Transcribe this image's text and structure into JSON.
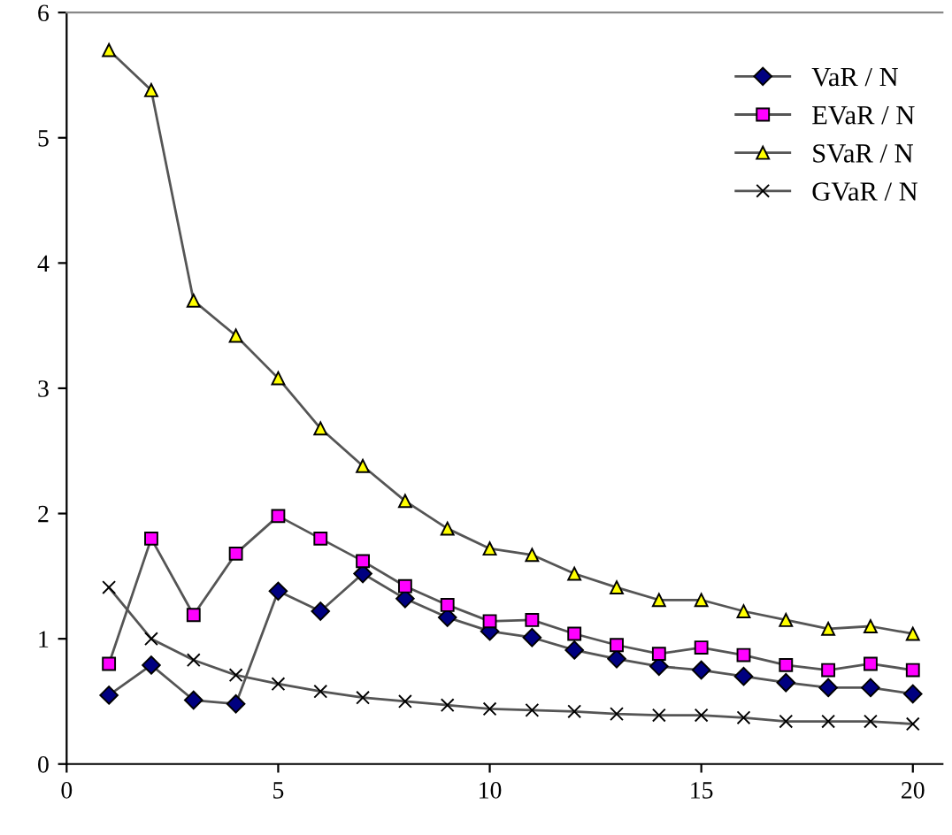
{
  "chart_data": {
    "type": "line",
    "x": [
      1,
      2,
      3,
      4,
      5,
      6,
      7,
      8,
      9,
      10,
      11,
      12,
      13,
      14,
      15,
      16,
      17,
      18,
      19,
      20
    ],
    "series": [
      {
        "name": "VaR / N",
        "color": "#000080",
        "marker": "diamond",
        "values": [
          0.55,
          0.79,
          0.51,
          0.48,
          1.38,
          1.22,
          1.52,
          1.32,
          1.17,
          1.06,
          1.01,
          0.91,
          0.84,
          0.78,
          0.75,
          0.7,
          0.65,
          0.61,
          0.61,
          0.56
        ]
      },
      {
        "name": "EVaR / N",
        "color": "#ff00ff",
        "marker": "square",
        "values": [
          0.8,
          1.8,
          1.19,
          1.68,
          1.98,
          1.8,
          1.62,
          1.42,
          1.27,
          1.14,
          1.15,
          1.04,
          0.95,
          0.88,
          0.93,
          0.87,
          0.79,
          0.75,
          0.8,
          0.75
        ]
      },
      {
        "name": "SVaR / N",
        "color": "#ffff00",
        "marker": "triangle",
        "values": [
          5.7,
          5.38,
          3.7,
          3.42,
          3.08,
          2.68,
          2.38,
          2.1,
          1.88,
          1.72,
          1.67,
          1.52,
          1.41,
          1.31,
          1.31,
          1.22,
          1.15,
          1.08,
          1.1,
          1.04
        ]
      },
      {
        "name": "GVaR / N",
        "color": "#000000",
        "marker": "cross",
        "values": [
          1.41,
          1.0,
          0.83,
          0.71,
          0.64,
          0.58,
          0.53,
          0.5,
          0.47,
          0.44,
          0.43,
          0.42,
          0.4,
          0.39,
          0.39,
          0.37,
          0.34,
          0.34,
          0.34,
          0.32
        ]
      }
    ],
    "xlim": [
      0,
      20.7
    ],
    "xticks": [
      0,
      5,
      10,
      15,
      20
    ],
    "ylim": [
      0,
      6
    ],
    "yticks": [
      0,
      1,
      2,
      3,
      4,
      5,
      6
    ],
    "grid": false,
    "legend": "top right"
  }
}
